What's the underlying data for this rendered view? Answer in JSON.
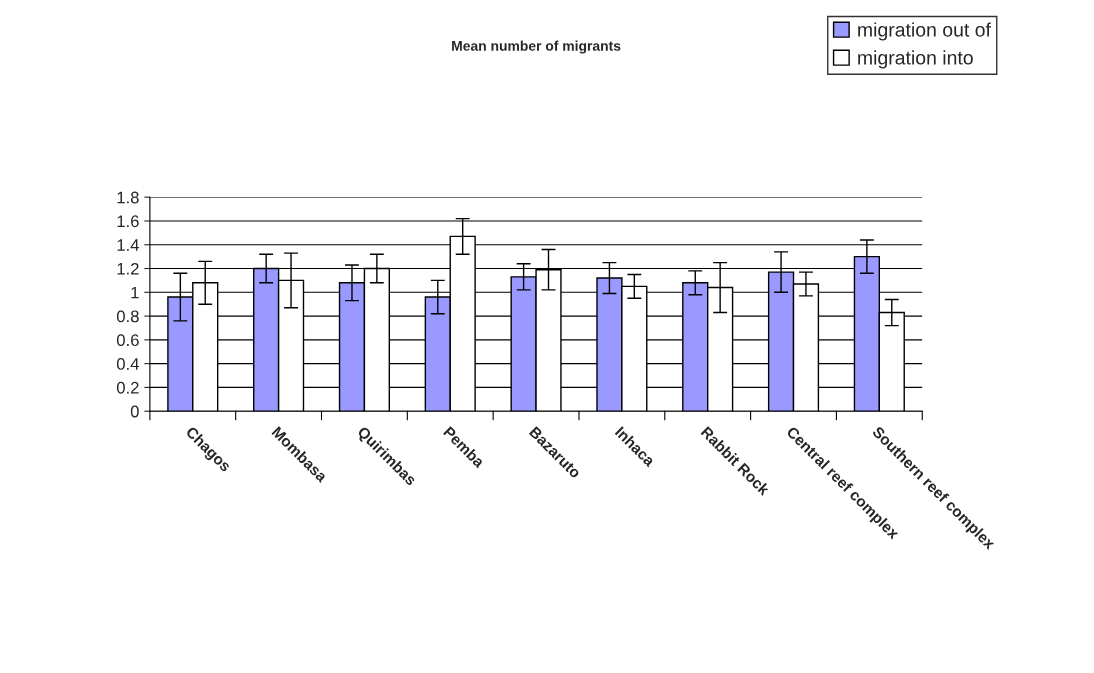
{
  "chart_data": {
    "type": "bar",
    "title": "Mean number of migrants",
    "categories": [
      "Chagos",
      "Mombasa",
      "Quirimbas",
      "Pemba",
      "Bazaruto",
      "Inhaca",
      "Rabbit Rock",
      "Central reef complex",
      "Southern reef complex"
    ],
    "series": [
      {
        "name": "migration out of",
        "color": "#9999ff",
        "values": [
          0.96,
          1.2,
          1.08,
          0.96,
          1.13,
          1.12,
          1.08,
          1.17,
          1.3
        ],
        "errors": [
          0.2,
          0.12,
          0.15,
          0.14,
          0.11,
          0.13,
          0.1,
          0.17,
          0.14
        ]
      },
      {
        "name": "migration into",
        "color": "#ffffff",
        "values": [
          1.08,
          1.1,
          1.2,
          1.47,
          1.19,
          1.05,
          1.04,
          1.07,
          0.83
        ],
        "errors": [
          0.18,
          0.23,
          0.12,
          0.15,
          0.17,
          0.1,
          0.21,
          0.1,
          0.11
        ]
      }
    ],
    "ylim": [
      0,
      1.8
    ],
    "yticks": [
      0,
      0.2,
      0.4,
      0.6,
      0.8,
      1,
      1.2,
      1.4,
      1.6,
      1.8
    ],
    "grid": "y",
    "legend": "top right"
  }
}
